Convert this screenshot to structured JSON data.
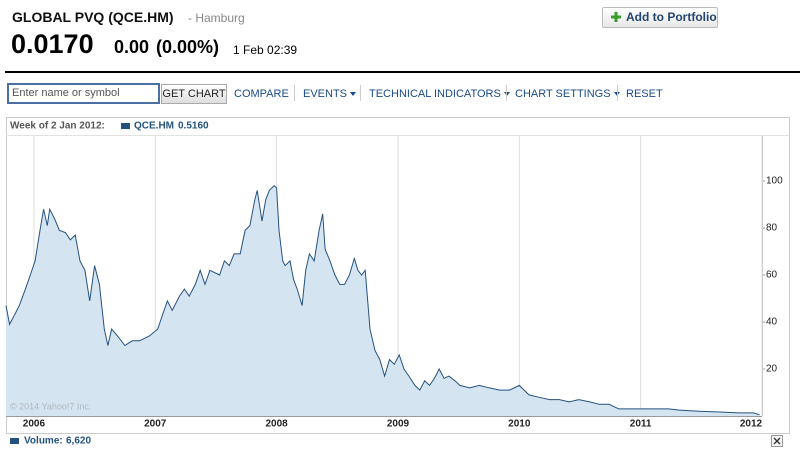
{
  "header": {
    "name": "GLOBAL PVQ (QCE.HM)",
    "exchange": "- Hamburg",
    "price": "0.0170",
    "change": "0.00",
    "change_pct": "(0.00%)",
    "time": "1 Feb 02:39",
    "button": "Add to Portfolio"
  },
  "toolbar": {
    "input_placeholder": "Enter name or symbol",
    "button": "GET CHART",
    "links": [
      "COMPARE",
      "EVENTS",
      "TECHNICAL INDICATORS",
      "CHART SETTINGS",
      "RESET"
    ]
  },
  "chart_data": {
    "type": "area",
    "legend_title": "Week of 2 Jan 2012:",
    "watermark": "© 2014 Yahoo!7 Inc.",
    "series": [
      {
        "name": "QCE.HM",
        "legend_value": "0.5160",
        "color": "#24527f",
        "fill": "#d5e4f1",
        "x": [
          2005.77,
          2005.8,
          2005.84,
          2005.88,
          2005.93,
          2005.97,
          2006.01,
          2006.05,
          2006.08,
          2006.11,
          2006.13,
          2006.17,
          2006.21,
          2006.26,
          2006.3,
          2006.34,
          2006.38,
          2006.42,
          2006.46,
          2006.5,
          2006.54,
          2006.58,
          2006.61,
          2006.64,
          2006.69,
          2006.75,
          2006.81,
          2006.87,
          2006.95,
          2007.02,
          2007.06,
          2007.1,
          2007.14,
          2007.2,
          2007.24,
          2007.28,
          2007.33,
          2007.37,
          2007.41,
          2007.45,
          2007.53,
          2007.57,
          2007.61,
          2007.65,
          2007.7,
          2007.74,
          2007.78,
          2007.82,
          2007.84,
          2007.88,
          2007.91,
          2007.94,
          2007.98,
          2008.0,
          2008.02,
          2008.05,
          2008.07,
          2008.11,
          2008.14,
          2008.17,
          2008.21,
          2008.24,
          2008.27,
          2008.31,
          2008.35,
          2008.38,
          2008.4,
          2008.44,
          2008.48,
          2008.52,
          2008.56,
          2008.6,
          2008.64,
          2008.67,
          2008.7,
          2008.73,
          2008.77,
          2008.81,
          2008.85,
          2008.89,
          2008.93,
          2008.97,
          2009.01,
          2009.05,
          2009.09,
          2009.14,
          2009.18,
          2009.22,
          2009.26,
          2009.3,
          2009.34,
          2009.38,
          2009.42,
          2009.47,
          2009.51,
          2009.59,
          2009.67,
          2009.75,
          2009.84,
          2009.92,
          2010.0,
          2010.08,
          2010.16,
          2010.25,
          2010.33,
          2010.41,
          2010.49,
          2010.58,
          2010.66,
          2010.74,
          2010.82,
          2010.91,
          2010.99,
          2011.07,
          2011.15,
          2011.23,
          2011.32,
          2011.48,
          2011.65,
          2011.81,
          2011.93,
          2011.98
        ],
        "values": [
          47,
          39,
          43,
          47,
          54,
          60,
          66,
          79,
          88,
          81,
          88,
          84,
          79,
          78,
          75,
          77,
          66,
          62,
          49,
          64,
          56,
          37,
          30,
          37,
          34,
          30,
          32,
          32,
          34,
          37,
          43,
          49,
          45,
          51,
          54,
          51,
          56,
          62,
          56,
          62,
          60,
          66,
          64,
          69,
          69,
          79,
          81,
          92,
          96,
          83,
          92,
          96,
          98,
          97,
          79,
          66,
          64,
          66,
          58,
          54,
          47,
          62,
          69,
          66,
          79,
          86,
          71,
          66,
          60,
          56,
          56,
          60,
          67,
          62,
          60,
          62,
          37,
          28,
          24,
          17,
          24,
          22,
          26,
          20,
          17,
          13,
          11,
          15,
          13,
          16,
          20,
          16,
          17,
          15,
          13,
          12,
          13,
          12,
          11,
          11,
          13,
          9,
          8,
          7,
          7,
          6,
          7,
          6,
          5,
          5,
          3,
          3,
          3,
          3,
          3,
          3,
          2.5,
          2,
          1.7,
          1.3,
          1.3,
          0.516
        ]
      }
    ],
    "xlim": [
      2005.77,
      2012.0
    ],
    "xticks": [
      2006,
      2007,
      2008,
      2009,
      2010,
      2011,
      2012
    ],
    "ylim": [
      0,
      120
    ],
    "yticks": [
      20,
      40,
      60,
      80,
      100
    ],
    "grid": "x",
    "volume_label": "Volume:",
    "volume_value": "6,620"
  }
}
